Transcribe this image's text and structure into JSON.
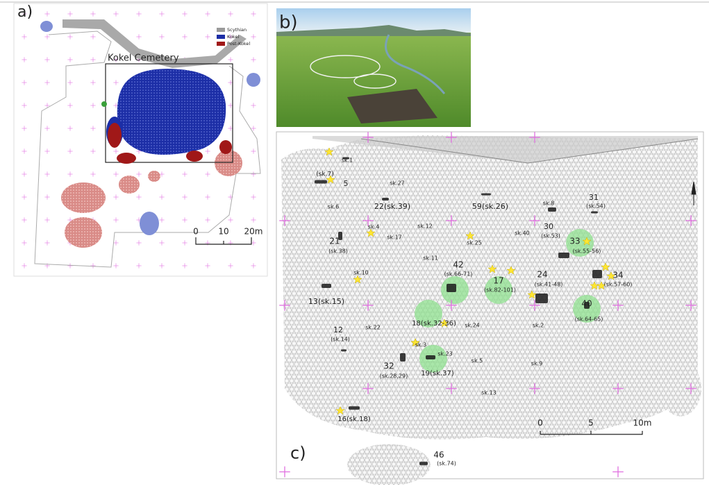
{
  "panel_a": {
    "label": "a)",
    "inset_title": "Kokel Cemetery",
    "legend": [
      "Scythian",
      "Kokel",
      "Post-Kokel"
    ],
    "scale": [
      "0",
      "10",
      "20m"
    ]
  },
  "panel_b": {
    "label": "b)"
  },
  "panel_c": {
    "label": "c)",
    "scale": [
      "0",
      "5",
      "10m"
    ],
    "labels": [
      "sk.1",
      "(sk.7)",
      "5",
      "sk.27",
      "22(sk.39)",
      "sk.6",
      "59(sk.26)",
      "sk.8",
      "31",
      "(sk.54)",
      "sk.4",
      "sk.12",
      "sk.17",
      "30",
      "(sk.53)",
      "sk.40",
      "sk.25",
      "33",
      "(sk.55-56)",
      "21",
      "(sk.38)",
      "sk.11",
      "42",
      "(sk.66-71)",
      "17",
      "(sk.82-101)",
      "24",
      "(sk.41-48)",
      "34",
      "(sk.57-60)",
      "sk.10",
      "13(sk.15)",
      "40",
      "(sk.64-65)",
      "18(sk.32-36)",
      "sk.24",
      "sk.2",
      "sk.22",
      "12",
      "(sk.14)",
      "sk.3",
      "sk.23",
      "sk.5",
      "32",
      "(sk.28,29)",
      "19(sk.37)",
      "sk.9",
      "sk.13",
      "16(sk.18)",
      "46",
      "(sk.74)"
    ]
  }
}
